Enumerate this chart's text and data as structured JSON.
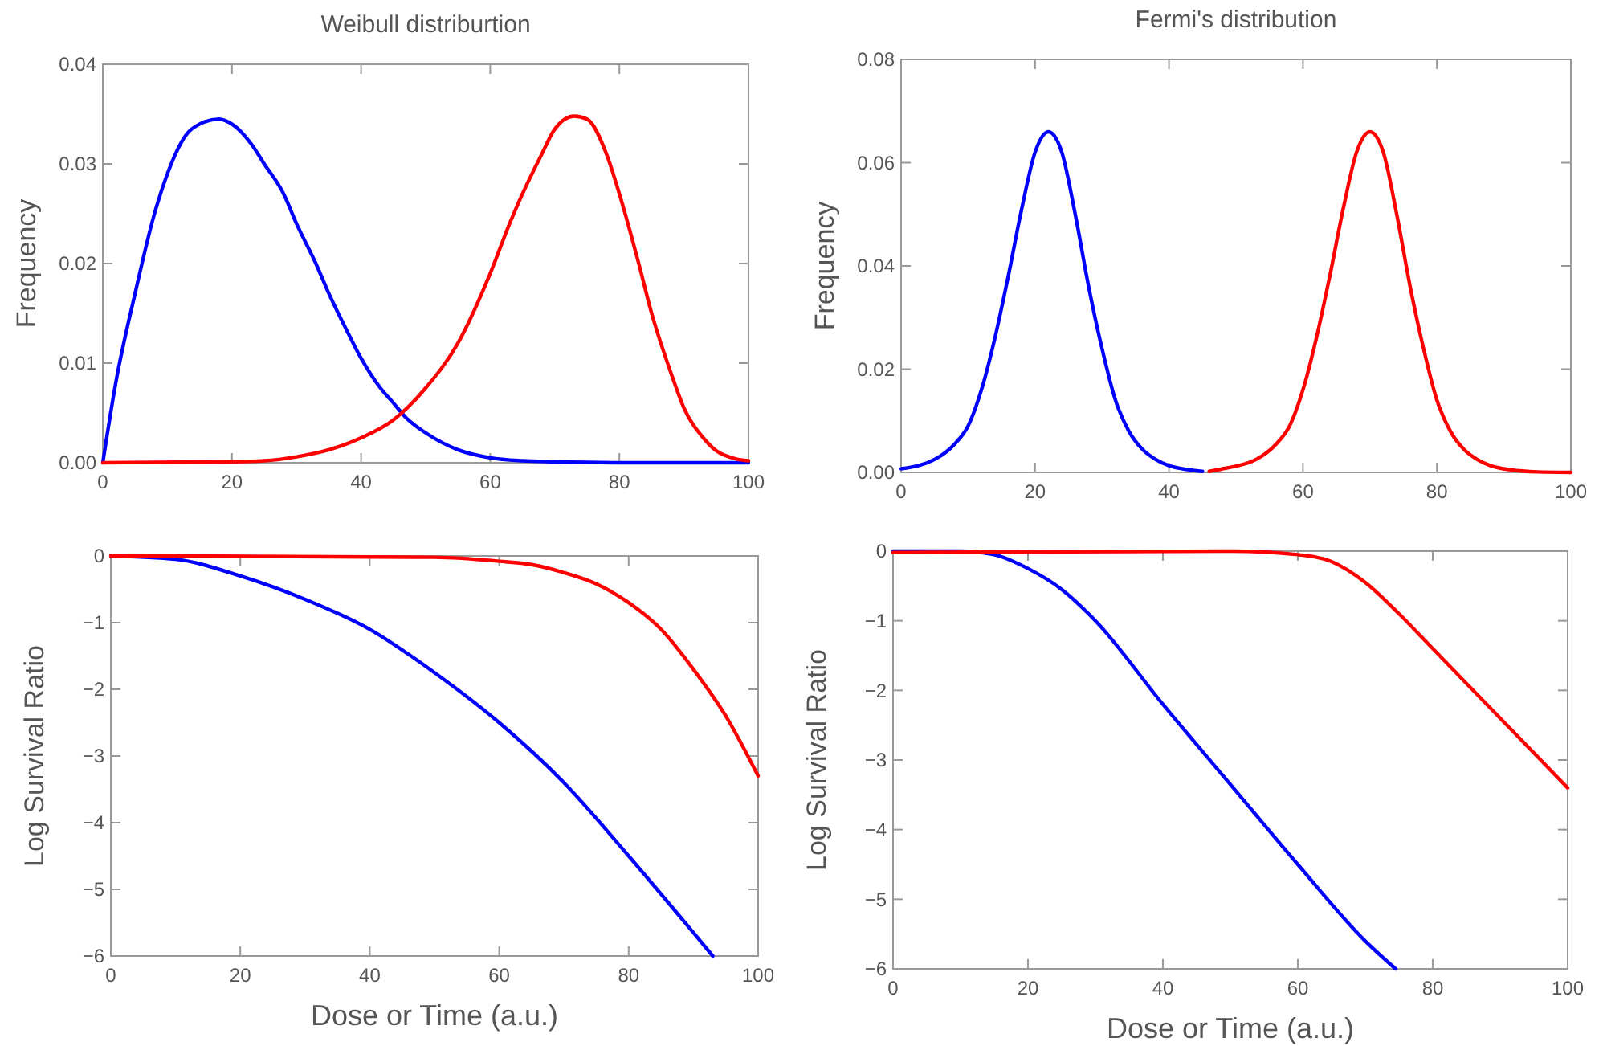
{
  "chart_data": [
    {
      "type": "line",
      "title": "Weibull distriburtion",
      "ylabel": "Frequency",
      "xlim": [
        0,
        100
      ],
      "ylim": [
        0,
        0.04
      ],
      "xticks": [
        0,
        20,
        40,
        60,
        80,
        100
      ],
      "yticks": [
        {
          "value": 0,
          "label": "0.00"
        },
        {
          "value": 0.01,
          "label": "0.01"
        },
        {
          "value": 0.02,
          "label": "0.02"
        },
        {
          "value": 0.03,
          "label": "0.03"
        },
        {
          "value": 0.04,
          "label": "0.04"
        }
      ],
      "grid": false,
      "line_style": "solid",
      "series": [
        {
          "color": "#0000ff",
          "x": [
            0,
            2,
            5,
            8,
            10,
            13,
            15,
            18,
            20,
            23,
            25,
            28,
            30,
            33,
            35,
            38,
            40,
            43,
            45,
            47,
            50,
            55,
            60,
            65,
            70,
            80,
            100
          ],
          "values": [
            0,
            0.008,
            0.017,
            0.025,
            0.029,
            0.033,
            0.034,
            0.0345,
            0.034,
            0.032,
            0.03,
            0.027,
            0.024,
            0.02,
            0.017,
            0.013,
            0.0105,
            0.0075,
            0.006,
            0.0045,
            0.003,
            0.0013,
            0.0005,
            0.0002,
            0.0001,
            0,
            0
          ]
        },
        {
          "color": "#ff0000",
          "x": [
            0,
            20,
            25,
            30,
            35,
            40,
            45,
            50,
            55,
            60,
            63,
            65,
            68,
            70,
            73,
            75,
            78,
            80,
            83,
            85,
            88,
            90,
            93,
            95,
            98,
            100
          ],
          "values": [
            0,
            0.0001,
            0.0002,
            0.0006,
            0.0013,
            0.0025,
            0.0043,
            0.0075,
            0.012,
            0.019,
            0.024,
            0.027,
            0.031,
            0.0335,
            0.0348,
            0.0345,
            0.031,
            0.027,
            0.02,
            0.015,
            0.009,
            0.0055,
            0.0025,
            0.0012,
            0.0004,
            0.0002
          ]
        }
      ]
    },
    {
      "type": "line",
      "title": "Fermi's distribution",
      "ylabel": "Frequency",
      "xlim": [
        0,
        100
      ],
      "ylim": [
        0,
        0.08
      ],
      "xticks": [
        0,
        20,
        40,
        60,
        80,
        100
      ],
      "yticks": [
        {
          "value": 0,
          "label": "0.00"
        },
        {
          "value": 0.02,
          "label": "0.02"
        },
        {
          "value": 0.04,
          "label": "0.04"
        },
        {
          "value": 0.06,
          "label": "0.06"
        },
        {
          "value": 0.08,
          "label": "0.08"
        }
      ],
      "grid": false,
      "line_style": "solid",
      "series": [
        {
          "color": "#0000ff",
          "x": [
            0,
            5,
            8,
            10,
            12,
            14,
            16,
            18,
            20,
            22,
            24,
            26,
            28,
            30,
            32,
            34,
            36,
            38,
            40,
            43,
            45
          ],
          "values": [
            0.0007,
            0.0025,
            0.0055,
            0.009,
            0.016,
            0.026,
            0.038,
            0.051,
            0.062,
            0.066,
            0.062,
            0.05,
            0.036,
            0.024,
            0.014,
            0.008,
            0.0045,
            0.0025,
            0.0013,
            0.0005,
            0.0002
          ]
        },
        {
          "color": "#ff0000",
          "x": [
            46,
            48,
            53,
            56,
            58,
            60,
            62,
            64,
            66,
            68,
            70,
            72,
            74,
            76,
            78,
            80,
            82,
            84,
            86,
            88,
            91,
            95,
            100
          ],
          "values": [
            0.0002,
            0.0007,
            0.0025,
            0.0055,
            0.009,
            0.016,
            0.026,
            0.038,
            0.051,
            0.062,
            0.066,
            0.062,
            0.05,
            0.036,
            0.024,
            0.014,
            0.008,
            0.0045,
            0.0025,
            0.0013,
            0.0005,
            0.0001,
            0
          ]
        }
      ]
    },
    {
      "type": "line",
      "xlabel": "Dose or Time (a.u.)",
      "ylabel": "Log Survival Ratio",
      "xlim": [
        0,
        100
      ],
      "ylim": [
        -6,
        0
      ],
      "xticks": [
        0,
        20,
        40,
        60,
        80,
        100
      ],
      "yticks": [
        {
          "value": -6,
          "label": "−6"
        },
        {
          "value": -5,
          "label": "−5"
        },
        {
          "value": -4,
          "label": "−4"
        },
        {
          "value": -3,
          "label": "−3"
        },
        {
          "value": -2,
          "label": "−2"
        },
        {
          "value": -1,
          "label": "−1"
        },
        0
      ],
      "grid": false,
      "line_style": "solid",
      "series": [
        {
          "color": "#0000ff",
          "x": [
            0,
            10,
            20,
            30,
            40,
            50,
            60,
            70,
            80,
            90,
            93
          ],
          "values": [
            0,
            -0.05,
            -0.3,
            -0.65,
            -1.1,
            -1.75,
            -2.5,
            -3.4,
            -4.5,
            -5.65,
            -6
          ]
        },
        {
          "color": "#ff0000",
          "x": [
            0,
            50,
            60,
            65,
            70,
            75,
            80,
            85,
            90,
            95,
            100
          ],
          "values": [
            0,
            -0.02,
            -0.08,
            -0.13,
            -0.25,
            -0.42,
            -0.7,
            -1.1,
            -1.7,
            -2.4,
            -3.3
          ]
        }
      ]
    },
    {
      "type": "line",
      "xlabel": "Dose or Time (a.u.)",
      "ylabel": "Log Survival Ratio",
      "xlim": [
        0,
        100
      ],
      "ylim": [
        -6,
        0
      ],
      "xticks": [
        0,
        20,
        40,
        60,
        80,
        100
      ],
      "yticks": [
        {
          "value": -6,
          "label": "−6"
        },
        {
          "value": -5,
          "label": "−5"
        },
        {
          "value": -4,
          "label": "−4"
        },
        {
          "value": -3,
          "label": "−3"
        },
        {
          "value": -2,
          "label": "−2"
        },
        {
          "value": -1,
          "label": "−1"
        },
        0
      ],
      "grid": false,
      "line_style": "solid",
      "series": [
        {
          "color": "#0000ff",
          "x": [
            0,
            10,
            15,
            20,
            25,
            30,
            40,
            50,
            60,
            70,
            74.5
          ],
          "values": [
            0,
            0,
            -0.05,
            -0.25,
            -0.55,
            -1.0,
            -2.2,
            -3.35,
            -4.5,
            -5.6,
            -6
          ]
        },
        {
          "color": "#ff0000",
          "x": [
            0,
            50,
            60,
            65,
            70,
            75,
            80,
            90,
            100
          ],
          "values": [
            -0.02,
            0,
            -0.05,
            -0.15,
            -0.45,
            -0.9,
            -1.4,
            -2.4,
            -3.4
          ]
        }
      ]
    }
  ]
}
